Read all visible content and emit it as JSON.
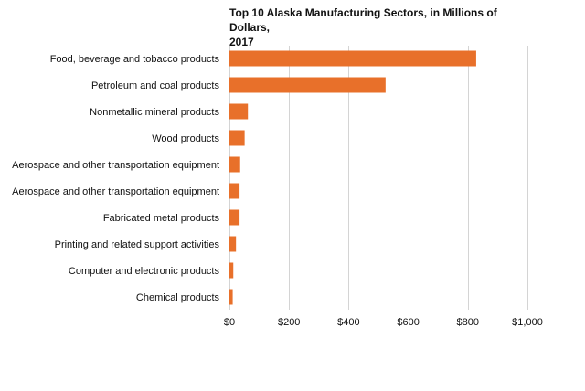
{
  "chart_data": {
    "type": "bar",
    "orientation": "horizontal",
    "title": "Top 10 Alaska Manufacturing Sectors, in Millions of Dollars, 2017",
    "categories": [
      "Food, beverage and tobacco products",
      "Petroleum and coal products",
      "Nonmetallic mineral products",
      "Wood products",
      "Aerospace and other transportation equipment",
      "Aerospace and other transportation equipment",
      "Fabricated metal products",
      "Printing and related support activities",
      "Computer and electronic products",
      "Chemical products"
    ],
    "values": [
      828,
      524,
      62,
      51,
      36,
      34,
      34,
      22,
      13,
      11
    ],
    "xlim": [
      0,
      1000
    ],
    "xticks": [
      0,
      200,
      400,
      600,
      800,
      1000
    ],
    "xtick_labels": [
      "$0",
      "$200",
      "$400",
      "$600",
      "$800",
      "$1,000"
    ],
    "bar_color": "#e8702a",
    "grid": true,
    "legend": "none"
  }
}
